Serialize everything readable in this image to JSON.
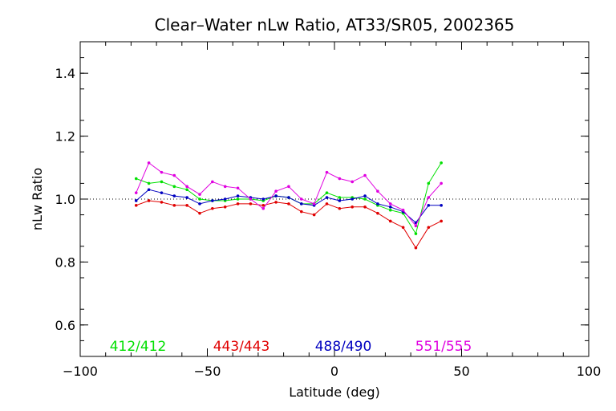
{
  "chart_data": {
    "type": "line",
    "title": "Clear–Water nLw Ratio, AT33/SR05, 2002365",
    "xlabel": "Latitude (deg)",
    "ylabel": "nLw Ratio",
    "xlim": [
      -100,
      100
    ],
    "ylim": [
      0.5,
      1.5
    ],
    "xticks": [
      -100,
      -50,
      0,
      50,
      100
    ],
    "xtick_labels": [
      "−100",
      "−50",
      "0",
      "50",
      "100"
    ],
    "yticks": [
      0.6,
      0.8,
      1.0,
      1.2,
      1.4
    ],
    "ytick_labels": [
      "0.6",
      "0.8",
      "1.0",
      "1.2",
      "1.4"
    ],
    "reference_line": 1.0,
    "grid": false,
    "legend_placement": "bottom-inside",
    "series": [
      {
        "name": "412/412",
        "color": "#00e000",
        "x": [
          -78,
          -73,
          -68,
          -63,
          -58,
          -53,
          -48,
          -43,
          -38,
          -33,
          -28,
          -23,
          -18,
          -13,
          -8,
          -3,
          2,
          7,
          12,
          17,
          22,
          27,
          32,
          37,
          42
        ],
        "y": [
          1.065,
          1.05,
          1.055,
          1.04,
          1.03,
          1.0,
          0.995,
          0.995,
          1.0,
          1.0,
          0.995,
          1.01,
          1.005,
          0.985,
          0.985,
          1.02,
          1.005,
          1.005,
          1.0,
          0.98,
          0.965,
          0.955,
          0.89,
          1.05,
          1.115
        ]
      },
      {
        "name": "443/443",
        "color": "#e00000",
        "x": [
          -78,
          -73,
          -68,
          -63,
          -58,
          -53,
          -48,
          -43,
          -38,
          -33,
          -28,
          -23,
          -18,
          -13,
          -8,
          -3,
          2,
          7,
          12,
          17,
          22,
          27,
          32,
          37,
          42
        ],
        "y": [
          0.98,
          0.995,
          0.99,
          0.98,
          0.98,
          0.955,
          0.97,
          0.975,
          0.985,
          0.985,
          0.98,
          0.99,
          0.985,
          0.96,
          0.95,
          0.985,
          0.97,
          0.975,
          0.975,
          0.955,
          0.93,
          0.91,
          0.845,
          0.91,
          0.93
        ]
      },
      {
        "name": "488/490",
        "color": "#0000c0",
        "x": [
          -78,
          -73,
          -68,
          -63,
          -58,
          -53,
          -48,
          -43,
          -38,
          -33,
          -28,
          -23,
          -18,
          -13,
          -8,
          -3,
          2,
          7,
          12,
          17,
          22,
          27,
          32,
          37,
          42
        ],
        "y": [
          0.995,
          1.03,
          1.02,
          1.01,
          1.005,
          0.985,
          0.995,
          1.0,
          1.01,
          1.005,
          1.0,
          1.01,
          1.005,
          0.985,
          0.98,
          1.005,
          0.995,
          1.0,
          1.01,
          0.985,
          0.975,
          0.96,
          0.925,
          0.98,
          0.98
        ]
      },
      {
        "name": "551/555",
        "color": "#e000e0",
        "x": [
          -78,
          -73,
          -68,
          -63,
          -58,
          -53,
          -48,
          -43,
          -38,
          -33,
          -28,
          -23,
          -18,
          -13,
          -8,
          -3,
          2,
          7,
          12,
          17,
          22,
          27,
          32,
          37,
          42
        ],
        "y": [
          1.02,
          1.115,
          1.085,
          1.075,
          1.04,
          1.015,
          1.055,
          1.04,
          1.035,
          1.0,
          0.97,
          1.025,
          1.04,
          1.0,
          0.985,
          1.085,
          1.065,
          1.055,
          1.075,
          1.025,
          0.985,
          0.965,
          0.915,
          1.005,
          1.05
        ]
      }
    ]
  }
}
